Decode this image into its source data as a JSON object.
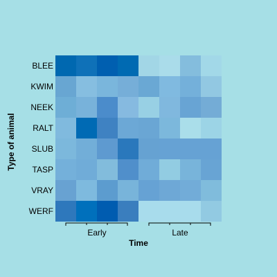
{
  "chart_data": {
    "type": "heatmap",
    "title": "",
    "xlabel": "Time",
    "ylabel": "Type of animal",
    "rows": [
      "BLEE",
      "KWIM",
      "NEEK",
      "RALT",
      "SLUB",
      "TASP",
      "VRAY",
      "WERF"
    ],
    "column_groups": [
      {
        "label": "Early",
        "columns": 4
      },
      {
        "label": "Late",
        "columns": 4
      }
    ],
    "columns": 8,
    "grid": false,
    "colors": [
      "#0068b0",
      "#0f71b8",
      "#005fb0",
      "#006ab2",
      "#a2d6e6",
      "#aadcea",
      "#84bddd",
      "#a2d8e8",
      "#68a6d2",
      "#86bee0",
      "#7ab6dc",
      "#76aed8",
      "#6aa8d4",
      "#80bae0",
      "#74b0da",
      "#92c8e2",
      "#6eaed6",
      "#78b2da",
      "#4b8ccb",
      "#86bae0",
      "#98d0e4",
      "#80b8de",
      "#68a4d4",
      "#74acd6",
      "#80bade",
      "#006ab4",
      "#3f82c2",
      "#6ca8d6",
      "#6aa6d4",
      "#7cb8dc",
      "#aadeea",
      "#9cd4e6",
      "#7cb8dc",
      "#72aed8",
      "#5e9ad0",
      "#2a78bc",
      "#66a2d2",
      "#66a2d4",
      "#66a2d4",
      "#66a2d4",
      "#74b0da",
      "#70acd8",
      "#82bcdc",
      "#508fcb",
      "#70acd8",
      "#92cce2",
      "#78b4da",
      "#68a4d4",
      "#68a2d2",
      "#7ebade",
      "#5c9ccf",
      "#78b4da",
      "#66a2d4",
      "#6ea8d6",
      "#72acd8",
      "#80bcdc",
      "#2e78bc",
      "#0070bc",
      "#005cb0",
      "#3a7ebe",
      "#a8dcec",
      "#a8dcec",
      "#a8dcec",
      "#92cae2"
    ]
  }
}
